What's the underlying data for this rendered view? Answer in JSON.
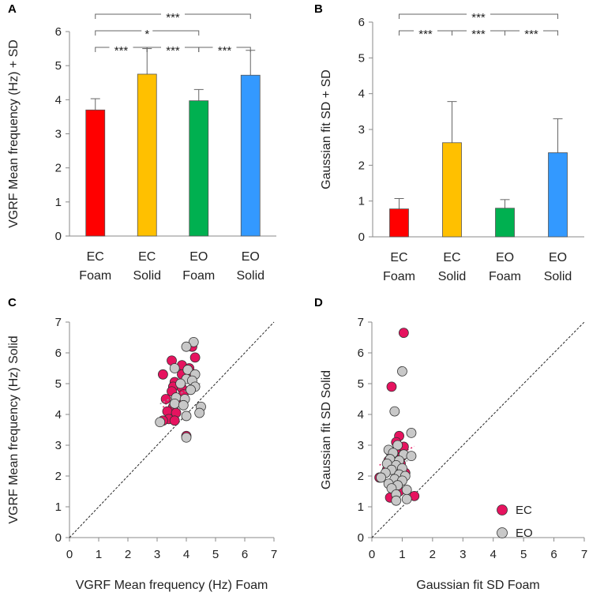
{
  "chart_data": [
    {
      "panel": "A",
      "type": "bar",
      "ylabel": "VGRF Mean frequency (Hz) + SD",
      "ylim": [
        0,
        6
      ],
      "yticks": [
        0,
        1,
        2,
        3,
        4,
        5,
        6
      ],
      "categories": [
        {
          "line1": "EC",
          "line2": "Foam"
        },
        {
          "line1": "EC",
          "line2": "Solid"
        },
        {
          "line1": "EO",
          "line2": "Foam"
        },
        {
          "line1": "EO",
          "line2": "Solid"
        }
      ],
      "values": [
        3.7,
        4.75,
        3.97,
        4.72
      ],
      "sd": [
        0.33,
        0.75,
        0.33,
        0.73
      ],
      "colors": [
        "#ff0000",
        "#ffc000",
        "#00b050",
        "#3399ff"
      ],
      "significance": [
        {
          "from": 0,
          "to": 3,
          "label": "***",
          "level": 3
        },
        {
          "from": 0,
          "to": 2,
          "label": "*",
          "level": 2
        },
        {
          "from": 0,
          "to": 1,
          "label": "***",
          "level": 1
        },
        {
          "from": 1,
          "to": 2,
          "label": "***",
          "level": 1
        },
        {
          "from": 2,
          "to": 3,
          "label": "***",
          "level": 1
        }
      ]
    },
    {
      "panel": "B",
      "type": "bar",
      "ylabel": "Gaussian fit SD + SD",
      "ylim": [
        0,
        6
      ],
      "yticks": [
        0,
        1,
        2,
        3,
        4,
        5,
        6
      ],
      "categories": [
        {
          "line1": "EC",
          "line2": "Foam"
        },
        {
          "line1": "EC",
          "line2": "Solid"
        },
        {
          "line1": "EO",
          "line2": "Foam"
        },
        {
          "line1": "EO",
          "line2": "Solid"
        }
      ],
      "values": [
        0.78,
        2.63,
        0.8,
        2.35
      ],
      "sd": [
        0.29,
        1.15,
        0.24,
        0.95
      ],
      "colors": [
        "#ff0000",
        "#ffc000",
        "#00b050",
        "#3399ff"
      ],
      "significance": [
        {
          "from": 0,
          "to": 3,
          "label": "***",
          "level": 2
        },
        {
          "from": 0,
          "to": 1,
          "label": "***",
          "level": 1
        },
        {
          "from": 1,
          "to": 2,
          "label": "***",
          "level": 1
        },
        {
          "from": 2,
          "to": 3,
          "label": "***",
          "level": 1
        }
      ]
    },
    {
      "panel": "C",
      "type": "scatter",
      "xlabel": "VGRF Mean frequency (Hz) Foam",
      "ylabel": "VGRF Mean frequency (Hz) Solid",
      "xlim": [
        0,
        7
      ],
      "ylim": [
        0,
        7
      ],
      "xticks": [
        0,
        1,
        2,
        3,
        4,
        5,
        6,
        7
      ],
      "yticks": [
        0,
        1,
        2,
        3,
        4,
        5,
        6,
        7
      ],
      "identity_line": true,
      "series": [
        {
          "name": "EC",
          "color": "#e6135f",
          "points": [
            [
              4.2,
              6.2
            ],
            [
              4.3,
              5.85
            ],
            [
              3.5,
              5.75
            ],
            [
              3.85,
              5.6
            ],
            [
              4.1,
              5.5
            ],
            [
              3.2,
              5.3
            ],
            [
              3.85,
              5.3
            ],
            [
              4.15,
              5.2
            ],
            [
              3.6,
              5.05
            ],
            [
              3.55,
              4.9
            ],
            [
              3.85,
              4.85
            ],
            [
              3.5,
              4.75
            ],
            [
              3.9,
              4.65
            ],
            [
              3.3,
              4.5
            ],
            [
              3.7,
              4.45
            ],
            [
              3.55,
              4.25
            ],
            [
              3.35,
              4.1
            ],
            [
              3.65,
              4.05
            ],
            [
              3.4,
              3.85
            ],
            [
              3.2,
              3.8
            ],
            [
              3.6,
              3.8
            ],
            [
              4.0,
              3.3
            ]
          ]
        },
        {
          "name": "EO",
          "color": "#c8c8c8",
          "points": [
            [
              4.25,
              6.35
            ],
            [
              4.0,
              6.2
            ],
            [
              3.6,
              5.5
            ],
            [
              4.05,
              5.45
            ],
            [
              4.3,
              5.3
            ],
            [
              4.0,
              5.15
            ],
            [
              4.2,
              5.1
            ],
            [
              3.8,
              5.0
            ],
            [
              4.3,
              4.9
            ],
            [
              4.15,
              4.8
            ],
            [
              3.65,
              4.55
            ],
            [
              3.95,
              4.5
            ],
            [
              4.5,
              4.25
            ],
            [
              3.6,
              4.35
            ],
            [
              3.9,
              4.3
            ],
            [
              4.45,
              4.05
            ],
            [
              4.0,
              3.95
            ],
            [
              3.1,
              3.75
            ],
            [
              4.0,
              3.25
            ]
          ]
        }
      ]
    },
    {
      "panel": "D",
      "type": "scatter",
      "xlabel": "Gaussian fit SD Foam",
      "ylabel": "Gaussian fit SD Solid",
      "xlim": [
        0,
        7
      ],
      "ylim": [
        0,
        7
      ],
      "xticks": [
        0,
        1,
        2,
        3,
        4,
        5,
        6,
        7
      ],
      "yticks": [
        0,
        1,
        2,
        3,
        4,
        5,
        6,
        7
      ],
      "identity_line": true,
      "legend": [
        {
          "label": "EC",
          "color": "#e6135f"
        },
        {
          "label": "EO",
          "color": "#c8c8c8"
        }
      ],
      "series": [
        {
          "name": "EC",
          "color": "#e6135f",
          "points": [
            [
              1.05,
              6.65
            ],
            [
              0.65,
              4.9
            ],
            [
              0.9,
              3.3
            ],
            [
              0.8,
              3.1
            ],
            [
              1.05,
              2.95
            ],
            [
              0.6,
              2.8
            ],
            [
              0.85,
              2.7
            ],
            [
              1.0,
              2.65
            ],
            [
              0.55,
              2.5
            ],
            [
              0.75,
              2.45
            ],
            [
              0.95,
              2.4
            ],
            [
              0.7,
              2.3
            ],
            [
              0.5,
              2.2
            ],
            [
              0.85,
              2.15
            ],
            [
              1.1,
              2.1
            ],
            [
              0.25,
              1.95
            ],
            [
              0.65,
              1.7
            ],
            [
              0.9,
              1.5
            ],
            [
              0.6,
              1.3
            ],
            [
              1.4,
              1.35
            ]
          ]
        },
        {
          "name": "EO",
          "color": "#c8c8c8",
          "points": [
            [
              1.0,
              5.4
            ],
            [
              0.75,
              4.1
            ],
            [
              1.3,
              3.4
            ],
            [
              0.85,
              3.0
            ],
            [
              0.55,
              2.85
            ],
            [
              0.7,
              2.75
            ],
            [
              1.05,
              2.7
            ],
            [
              1.3,
              2.65
            ],
            [
              0.6,
              2.55
            ],
            [
              0.9,
              2.5
            ],
            [
              0.5,
              2.4
            ],
            [
              0.8,
              2.35
            ],
            [
              1.0,
              2.25
            ],
            [
              0.65,
              2.2
            ],
            [
              0.45,
              2.1
            ],
            [
              0.9,
              2.05
            ],
            [
              1.1,
              2.0
            ],
            [
              0.3,
              1.95
            ],
            [
              0.75,
              1.9
            ],
            [
              1.0,
              1.85
            ],
            [
              0.55,
              1.75
            ],
            [
              0.85,
              1.7
            ],
            [
              0.65,
              1.6
            ],
            [
              1.15,
              1.55
            ],
            [
              0.8,
              1.4
            ],
            [
              1.15,
              1.25
            ],
            [
              0.8,
              1.2
            ]
          ]
        }
      ]
    }
  ]
}
